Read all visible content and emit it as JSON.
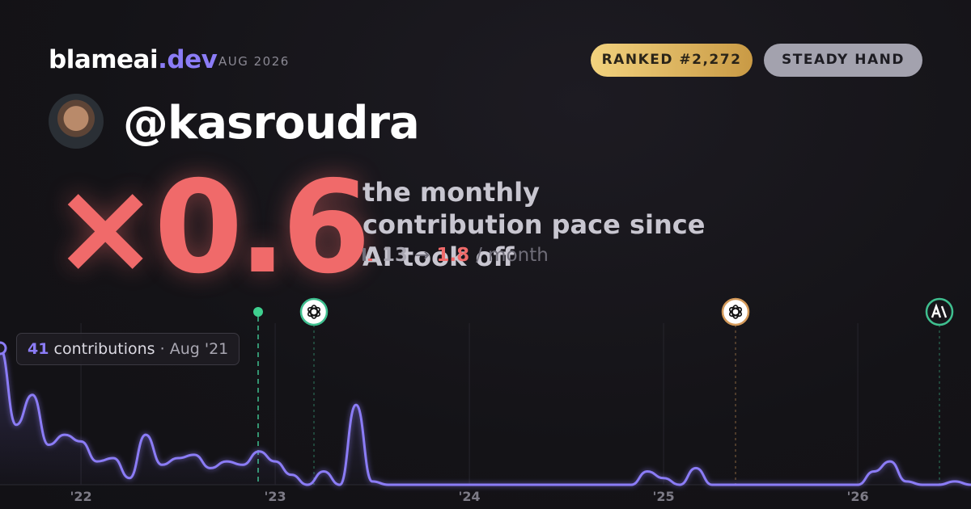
{
  "header": {
    "brand_name": "blameai",
    "brand_tld": ".dev",
    "date": "AUG 2026",
    "rank_badge": "RANKED #2,272",
    "style_badge": "STEADY HAND",
    "handle": "@kasroudra",
    "multiplier": "×0.6",
    "pace_text": "the monthly contribution pace since AI took off",
    "pace_before": 13,
    "pace_arrow": "→",
    "pace_after": 1.8,
    "pace_unit": "/ month"
  },
  "tooltip": {
    "label": "contributions",
    "separator": "·",
    "date": "Aug '21"
  },
  "chart_data": {
    "type": "line",
    "categories": [
      null,
      null,
      null,
      null,
      null,
      null,
      null,
      null,
      null,
      null,
      null,
      null,
      null,
      null,
      null,
      null,
      null,
      null,
      null,
      null,
      null,
      null,
      null,
      null,
      null,
      null,
      null,
      null,
      null,
      null,
      null,
      null,
      null,
      null,
      null,
      null,
      null,
      null,
      null,
      null,
      null,
      null,
      null,
      null,
      null,
      null,
      null,
      null,
      null,
      null,
      null,
      null,
      null,
      null,
      null,
      null,
      null,
      null,
      null,
      null,
      null
    ],
    "values": [
      41,
      18,
      27,
      12,
      15,
      13,
      7,
      8,
      2,
      15,
      6,
      8,
      9,
      5,
      7,
      6,
      10,
      7,
      3,
      0,
      4,
      0,
      24,
      1,
      0,
      0,
      0,
      0,
      0,
      0,
      0,
      0,
      0,
      0,
      0,
      0,
      0,
      0,
      0,
      0,
      4,
      2,
      0,
      5,
      0,
      0,
      0,
      0,
      0,
      0,
      0,
      0,
      0,
      0,
      4,
      7,
      1,
      0,
      0,
      1,
      0
    ],
    "color": "#8b7cf6",
    "xlim": [
      2021.583,
      2026.583
    ],
    "xticks": [
      {
        "value": 2022,
        "label": "'22"
      },
      {
        "value": 2023,
        "label": "'23"
      },
      {
        "value": 2024,
        "label": "'24"
      },
      {
        "value": 2025,
        "label": "'25"
      },
      {
        "value": 2026,
        "label": "'26"
      }
    ],
    "grid": true
  }
}
